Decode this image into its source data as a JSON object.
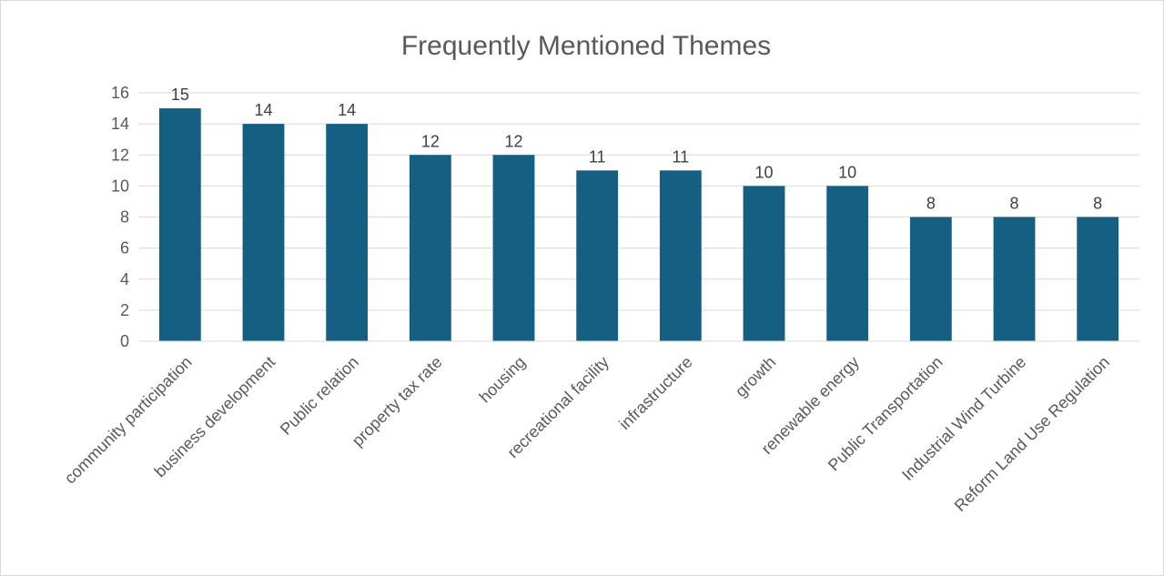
{
  "chart_data": {
    "type": "bar",
    "title": "Frequently Mentioned Themes",
    "xlabel": "",
    "ylabel": "",
    "categories": [
      "community participation",
      "business development",
      "Public relation",
      "property tax rate",
      "housing",
      "recreational facility",
      "infrastructure",
      "growth",
      "renewable energy",
      "Public Transportation",
      "Industrial Wind Turbine",
      "Reform Land Use Regulation"
    ],
    "values": [
      15,
      14,
      14,
      12,
      12,
      11,
      11,
      10,
      10,
      8,
      8,
      8
    ],
    "ylim": [
      0,
      16
    ],
    "yticks": [
      "0",
      "2",
      "4",
      "6",
      "8",
      "10",
      "12",
      "14",
      "16"
    ],
    "data_labels": true,
    "grid": true,
    "legend": "none",
    "colors": {
      "bar": "#156082",
      "grid": "#d9d9d9",
      "text": "#595959"
    }
  }
}
